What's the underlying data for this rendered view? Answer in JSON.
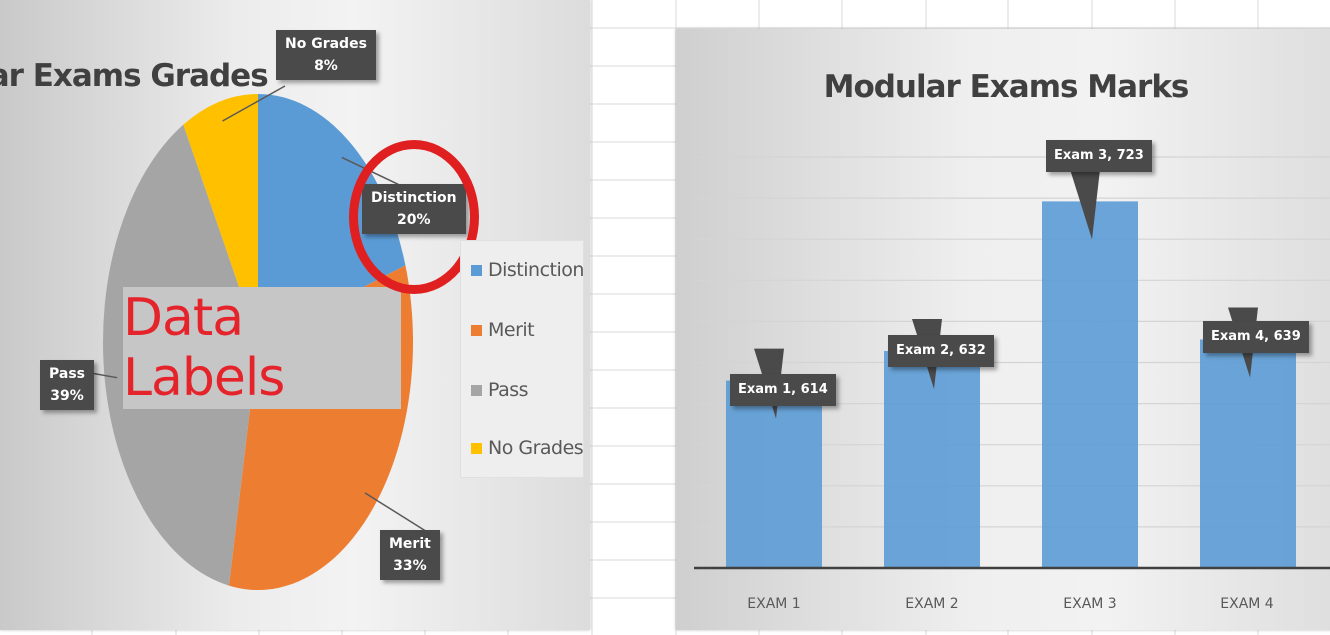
{
  "colors": {
    "distinction": "#5b9bd5",
    "merit": "#ed7d31",
    "pass": "#a5a5a5",
    "no_grades": "#ffc000",
    "bar": "#5b9bd5",
    "highlight": "#e02020",
    "overlay_text": "#e5232b"
  },
  "overlay": {
    "text": "Data Labels"
  },
  "chart_data": [
    {
      "type": "pie",
      "title": "ular Exams Grades",
      "categories": [
        "Distinction",
        "Merit",
        "Pass",
        "No Grades"
      ],
      "values": [
        20,
        33,
        39,
        8
      ],
      "data_labels": [
        {
          "name": "Distinction",
          "value": "20%"
        },
        {
          "name": "Merit",
          "value": "33%"
        },
        {
          "name": "Pass",
          "value": "39%"
        },
        {
          "name": "No Grades",
          "value": "8%"
        }
      ],
      "legend": {
        "position": "right",
        "entries": [
          "Distinction",
          "Merit",
          "Pass",
          "No Grades"
        ]
      }
    },
    {
      "type": "bar",
      "title": "Modular Exams Marks",
      "categories": [
        "EXAM 1",
        "EXAM 2",
        "EXAM 3",
        "EXAM 4"
      ],
      "values": [
        614,
        632,
        723,
        639
      ],
      "data_labels": [
        "Exam 1, 614",
        "Exam 2, 632",
        "Exam 3, 723",
        "Exam 4, 639"
      ],
      "grid": true,
      "legend": "none"
    }
  ]
}
